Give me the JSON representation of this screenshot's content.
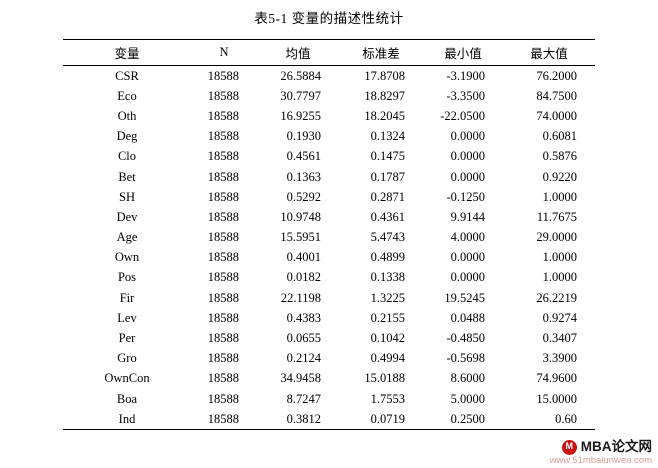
{
  "title": "表5-1  变量的描述性统计",
  "table": {
    "headers": [
      "变量",
      "N",
      "均值",
      "标准差",
      "最小值",
      "最大值"
    ],
    "rows": [
      [
        "CSR",
        "18588",
        "26.5884",
        "17.8708",
        "-3.1900",
        "76.2000"
      ],
      [
        "Eco",
        "18588",
        "30.7797",
        "18.8297",
        "-3.3500",
        "84.7500"
      ],
      [
        "Oth",
        "18588",
        "16.9255",
        "18.2045",
        "-22.0500",
        "74.0000"
      ],
      [
        "Deg",
        "18588",
        "0.1930",
        "0.1324",
        "0.0000",
        "0.6081"
      ],
      [
        "Clo",
        "18588",
        "0.4561",
        "0.1475",
        "0.0000",
        "0.5876"
      ],
      [
        "Bet",
        "18588",
        "0.1363",
        "0.1787",
        "0.0000",
        "0.9220"
      ],
      [
        "SH",
        "18588",
        "0.5292",
        "0.2871",
        "-0.1250",
        "1.0000"
      ],
      [
        "Dev",
        "18588",
        "10.9748",
        "0.4361",
        "9.9144",
        "11.7675"
      ],
      [
        "Age",
        "18588",
        "15.5951",
        "5.4743",
        "4.0000",
        "29.0000"
      ],
      [
        "Own",
        "18588",
        "0.4001",
        "0.4899",
        "0.0000",
        "1.0000"
      ],
      [
        "Pos",
        "18588",
        "0.0182",
        "0.1338",
        "0.0000",
        "1.0000"
      ],
      [
        "Fir",
        "18588",
        "22.1198",
        "1.3225",
        "19.5245",
        "26.2219"
      ],
      [
        "Lev",
        "18588",
        "0.4383",
        "0.2155",
        "0.0488",
        "0.9274"
      ],
      [
        "Per",
        "18588",
        "0.0655",
        "0.1042",
        "-0.4850",
        "0.3407"
      ],
      [
        "Gro",
        "18588",
        "0.2124",
        "0.4994",
        "-0.5698",
        "3.3900"
      ],
      [
        "OwnCon",
        "18588",
        "34.9458",
        "15.0188",
        "8.6000",
        "74.9600"
      ],
      [
        "Boa",
        "18588",
        "8.7247",
        "1.7553",
        "5.0000",
        "15.0000"
      ],
      [
        "Ind",
        "18588",
        "0.3812",
        "0.0719",
        "0.2500",
        "0.60"
      ]
    ]
  },
  "watermark": {
    "logo_letter": "M",
    "logo_color": "#cc1111",
    "brand": "MBA论文网",
    "brand_color": "#1a1a1a",
    "url": "www.51mbalunwen.com",
    "url_color": "#e59a9a"
  }
}
